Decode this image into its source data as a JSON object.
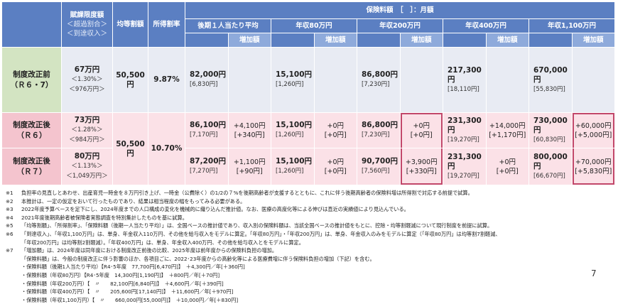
{
  "table": {
    "header": {
      "limit": [
        "賦課限度額",
        "＜超過割合＞",
        "＜到達収入＞"
      ],
      "per_capita": "均等割額",
      "income_rate": "所得割率",
      "premium_group": "保険料額　［　］：月額",
      "premium_columns": [
        "後期１人当たり平均",
        "年収80万円",
        "年収200万円",
        "年収400万円",
        "年収1,100万円"
      ],
      "increase": "増加額"
    },
    "rows": [
      {
        "label": [
          "制度改正前",
          "（Ｒ６・7）"
        ],
        "limit": [
          "67万円",
          "＜1.30%＞",
          "＜976万円＞"
        ],
        "per_capita": "50,500円",
        "income_rate": "9.87%",
        "premiums": [
          {
            "annual": "82,000円",
            "monthly": "[6,830円]"
          },
          {
            "annual": "15,100円",
            "monthly": "[1,260円]"
          },
          {
            "annual": "86,800円",
            "monthly": "[7,230円]"
          },
          {
            "annual": "217,300円",
            "monthly": "[18,110円]"
          },
          {
            "annual": "670,000円",
            "monthly": "[55,830円]"
          }
        ]
      },
      {
        "label": [
          "制度改正後",
          "（Ｒ６）"
        ],
        "limit": [
          "73万円",
          "＜1.28%＞",
          "＜984万円＞"
        ],
        "per_capita": "50,500円",
        "income_rate": "10.70%",
        "premiums": [
          {
            "annual": "86,100円",
            "monthly": "[7,170円]",
            "increase": "+4,100円",
            "increase_monthly": "[+340円]"
          },
          {
            "annual": "15,100円",
            "monthly": "[1,260円]",
            "increase": "+0円",
            "increase_monthly": "[+0円]"
          },
          {
            "annual": "86,800円",
            "monthly": "[7,230円]",
            "increase": "+0円",
            "increase_monthly": "[+0円]"
          },
          {
            "annual": "231,300円",
            "monthly": "[19,270円]",
            "increase": "+14,000円",
            "increase_monthly": "[+1,170円]"
          },
          {
            "annual": "730,000円",
            "monthly": "[60,830円]",
            "increase": "+60,000円",
            "increase_monthly": "[+5,000円]"
          }
        ]
      },
      {
        "label": [
          "制度改正後",
          "（Ｒ７）"
        ],
        "limit": [
          "80万円",
          "＜1.13%＞",
          "＜1,049万円＞"
        ],
        "premiums": [
          {
            "annual": "87,200円",
            "monthly": "[7,270円]",
            "increase": "+1,100円",
            "increase_monthly": "[+90円]"
          },
          {
            "annual": "15,100円",
            "monthly": "[1,260円]",
            "increase": "+0円",
            "increase_monthly": "[+0円]"
          },
          {
            "annual": "90,700円",
            "monthly": "[7,560円]",
            "increase": "+3,900円",
            "increase_monthly": "[+330円]"
          },
          {
            "annual": "231,300円",
            "monthly": "[19,270円]",
            "increase": "+0円",
            "increase_monthly": "[+0円]"
          },
          {
            "annual": "800,000円",
            "monthly": "[66,670円]",
            "increase": "+70,000円",
            "increase_monthly": "[+5,830円]"
          }
        ]
      }
    ]
  },
  "notes": [
    {
      "mark": "※1",
      "text": "負担率の見直しとあわせ、出産育児一時金を８万円引き上げ、一時金（公費除く）の1/2の７%を後期高齢者が支援するとともに、これに伴う後期高齢者の保険料増は所得割で対応する前提で試算。"
    },
    {
      "mark": "※2",
      "text": "本推計は、一定の仮定をおいて行ったものであり、結果は相当程度の幅をもってみる必要がある。"
    },
    {
      "mark": "※3",
      "text": "2022年度予算ベースを足下にし、2024年度までの人口構成の変化を機械的に織り込んだ推計値。なお、医療の高度化等による伸びは直近の実績値により見込んでいる。"
    },
    {
      "mark": "※4",
      "text": "2021年度後期高齢者被保険者実態調査を特別集計したものを基に試算。"
    },
    {
      "mark": "※5",
      "text": "「均等割額」、「所得割率」、「保険料額（後期一人当たり平均）」は、全国ベースの推計値であり、収入別の保険料額は、当該全国ベースの推計値をもとに、控除・均等割軽減について現行制度を前提に試算。"
    },
    {
      "mark": "※6",
      "text": "「到達収入」、「年収1,100万円」は、単身、年金収入110万円、その他を給与収入をモデルに算定。「年収80万円」・「年収200万円」は、単身、年金収入のみをモデルに算定（「年収80万円」は均等割7割軽減、"
    },
    {
      "text": "「年収200万円」は均等割2割軽減）。「年収400万円」は、単身、年金収入400万円、その他を給与収入とをモデルに算定。"
    },
    {
      "mark": "※7",
      "text": "「増加額」は、2024年度は同年度における制度改正前後の比較、2025年度は前年度からの保険料負担の増加。"
    },
    {
      "text": "「保険料額」は、今般の制度改正に伴う影響のほか、各項目ごに、2022･23年度からの高齢化等による医療費増に伴う保険料負担の増加（下記）を含む。"
    }
  ],
  "sub_items": [
    [
      "・保険料額（後期1人当たり平均）【R4･5年度　77,700円[6,470円]】　＋4,300円／年[＋360円]",
      "・保険料額（年収80万円）【R4･5年度　14,300円[1,190円]】　＋800円／年[＋70円]"
    ],
    [
      "・保険料額（年収200万円）【　〃　　82,100円[6,840円]】　＋4,600円／年[＋390円]",
      "・保険料額（年収400万円）【　〃　　205,600円[17,140円]】　＋11,600円／年[＋970円]"
    ],
    [
      "・保険料額（年収1,100万円）【　〃　　660,000円[55,000円]】　＋10,000円／年[＋830円]"
    ]
  ],
  "page_number": "7"
}
